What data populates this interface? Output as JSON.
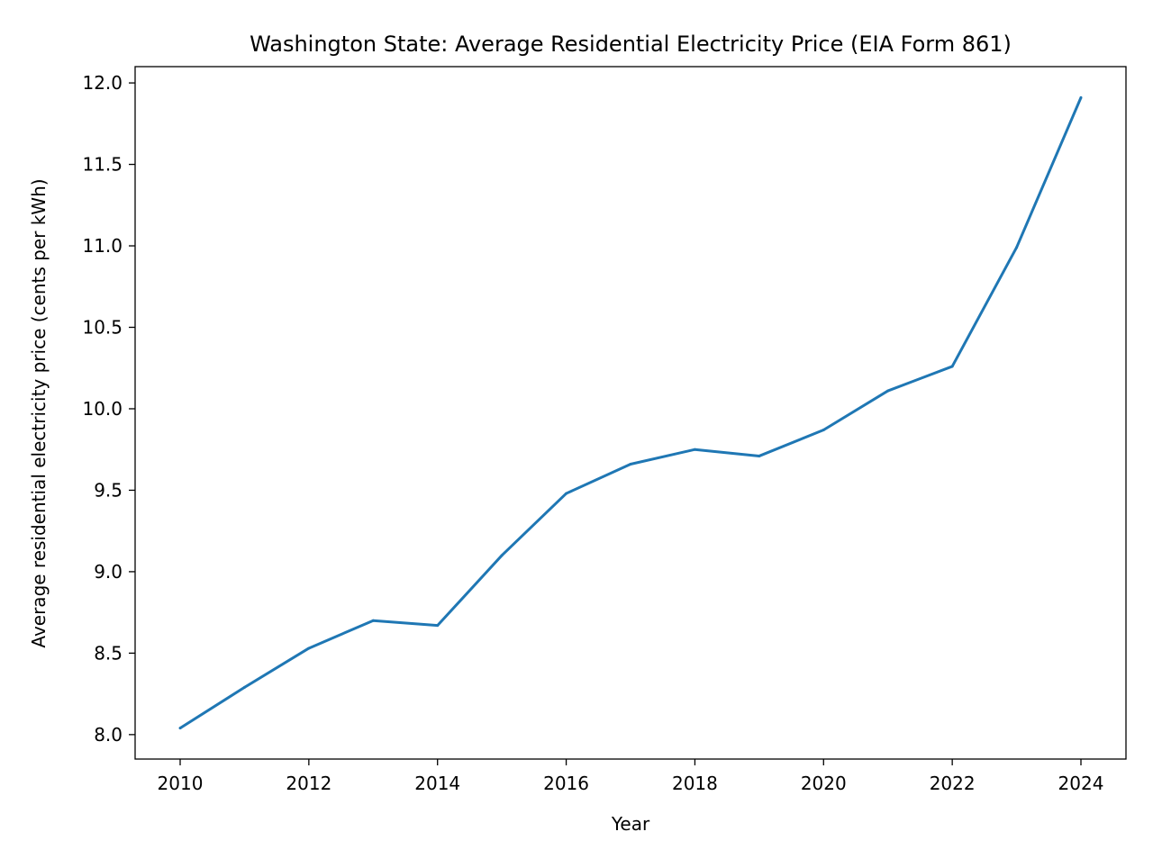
{
  "chart_data": {
    "type": "line",
    "title": "Washington State: Average Residential Electricity Price (EIA Form 861)",
    "xlabel": "Year",
    "ylabel": "Average residential electricity price (cents per kWh)",
    "x": [
      2010,
      2011,
      2012,
      2013,
      2014,
      2015,
      2016,
      2017,
      2018,
      2019,
      2020,
      2021,
      2022,
      2023,
      2024
    ],
    "series": [
      {
        "values": [
          8.04,
          8.29,
          8.53,
          8.7,
          8.67,
          9.1,
          9.48,
          9.66,
          9.75,
          9.71,
          9.87,
          10.11,
          10.26,
          10.99,
          11.91
        ],
        "color": "#1f77b4"
      }
    ],
    "xticks": [
      "2010",
      "2012",
      "2014",
      "2016",
      "2018",
      "2020",
      "2022",
      "2024"
    ],
    "yticks": [
      "8.0",
      "8.5",
      "9.0",
      "9.5",
      "10.0",
      "10.5",
      "11.0",
      "11.5",
      "12.0"
    ],
    "xlim": [
      2009.3,
      2024.7
    ],
    "ylim": [
      7.85,
      12.1
    ],
    "grid": false,
    "legend": "none"
  }
}
